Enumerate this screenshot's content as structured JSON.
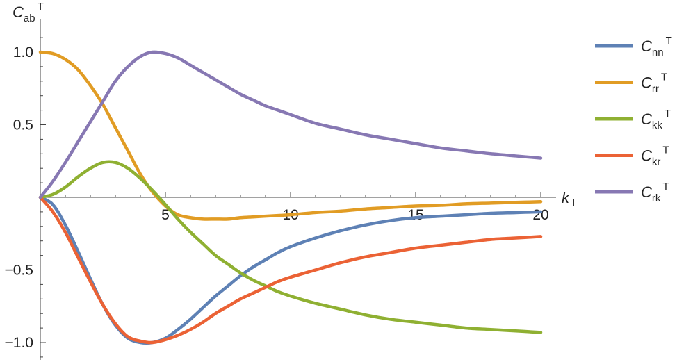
{
  "chart_data": {
    "type": "line",
    "ylabel": {
      "main": "C",
      "sub": "ab",
      "sup": "T"
    },
    "xlabel": {
      "main": "k",
      "sub": "⊥"
    },
    "xlim": [
      0,
      20
    ],
    "ylim": [
      -1.1,
      1.1
    ],
    "xticks": [
      5,
      10,
      15,
      20
    ],
    "xtick_labels": [
      "5",
      "10",
      "15",
      "20"
    ],
    "yticks": [
      -1.0,
      -0.5,
      0.5,
      1.0
    ],
    "ytick_labels": [
      "−1.0",
      "−0.5",
      "0.5",
      "1.0"
    ],
    "grid": false,
    "legend_position": "right",
    "series": [
      {
        "name": "C_nn^T",
        "label_main": "C",
        "label_sub": "nn",
        "label_sup": "T",
        "color": "#5E81B5",
        "x": [
          0,
          0.5,
          1,
          1.5,
          2,
          2.5,
          3,
          3.5,
          4,
          4.47,
          5,
          5.5,
          6,
          6.5,
          7,
          7.5,
          8,
          8.5,
          9,
          9.5,
          10,
          11,
          12,
          13,
          14,
          15,
          16,
          17,
          18,
          19,
          20
        ],
        "y": [
          0,
          -0.05,
          -0.19,
          -0.37,
          -0.56,
          -0.74,
          -0.88,
          -0.97,
          -1.0,
          -1.0,
          -0.97,
          -0.91,
          -0.84,
          -0.76,
          -0.68,
          -0.61,
          -0.54,
          -0.48,
          -0.43,
          -0.38,
          -0.34,
          -0.28,
          -0.23,
          -0.19,
          -0.16,
          -0.14,
          -0.13,
          -0.12,
          -0.11,
          -0.105,
          -0.1
        ]
      },
      {
        "name": "C_rr^T",
        "label_main": "C",
        "label_sub": "rr",
        "label_sup": "T",
        "color": "#E19C24",
        "x": [
          0,
          0.5,
          1,
          1.5,
          2,
          2.5,
          3,
          3.5,
          4,
          4.47,
          5,
          5.5,
          6,
          6.5,
          7,
          7.5,
          8,
          8.5,
          9,
          9.5,
          10,
          11,
          12,
          13,
          14,
          15,
          16,
          17,
          18,
          19,
          20
        ],
        "y": [
          1.0,
          0.99,
          0.95,
          0.88,
          0.77,
          0.64,
          0.48,
          0.32,
          0.16,
          0.04,
          -0.06,
          -0.12,
          -0.14,
          -0.15,
          -0.15,
          -0.15,
          -0.14,
          -0.135,
          -0.13,
          -0.125,
          -0.12,
          -0.105,
          -0.095,
          -0.08,
          -0.07,
          -0.06,
          -0.055,
          -0.045,
          -0.04,
          -0.035,
          -0.03
        ]
      },
      {
        "name": "C_kk^T",
        "label_main": "C",
        "label_sub": "kk",
        "label_sup": "T",
        "color": "#8FB032",
        "x": [
          0,
          0.5,
          1,
          1.5,
          2,
          2.5,
          3,
          3.5,
          4,
          4.47,
          5,
          5.5,
          6,
          6.5,
          7,
          7.5,
          8,
          8.5,
          9,
          9.5,
          10,
          11,
          12,
          13,
          14,
          15,
          16,
          17,
          18,
          19,
          20
        ],
        "y": [
          0,
          0.02,
          0.07,
          0.14,
          0.2,
          0.24,
          0.24,
          0.2,
          0.13,
          0.05,
          -0.05,
          -0.15,
          -0.24,
          -0.32,
          -0.4,
          -0.46,
          -0.52,
          -0.57,
          -0.61,
          -0.65,
          -0.68,
          -0.73,
          -0.77,
          -0.81,
          -0.84,
          -0.86,
          -0.88,
          -0.9,
          -0.91,
          -0.92,
          -0.93
        ]
      },
      {
        "name": "C_kr^T",
        "label_main": "C",
        "label_sub": "kr",
        "label_sup": "T",
        "color": "#EB6235",
        "x": [
          0,
          0.5,
          1,
          1.5,
          2,
          2.5,
          3,
          3.5,
          4,
          4.47,
          5,
          5.5,
          6,
          6.5,
          7,
          7.5,
          8,
          8.5,
          9,
          9.5,
          10,
          11,
          12,
          13,
          14,
          15,
          16,
          17,
          18,
          19,
          20
        ],
        "y": [
          0,
          -0.1,
          -0.24,
          -0.41,
          -0.58,
          -0.74,
          -0.87,
          -0.96,
          -0.99,
          -1.0,
          -0.98,
          -0.95,
          -0.91,
          -0.86,
          -0.8,
          -0.75,
          -0.7,
          -0.66,
          -0.62,
          -0.58,
          -0.55,
          -0.5,
          -0.45,
          -0.41,
          -0.38,
          -0.35,
          -0.33,
          -0.31,
          -0.29,
          -0.28,
          -0.27
        ]
      },
      {
        "name": "C_rk^T",
        "label_main": "C",
        "label_sub": "rk",
        "label_sup": "T",
        "color": "#8778B3",
        "x": [
          0,
          0.5,
          1,
          1.5,
          2,
          2.5,
          3,
          3.5,
          4,
          4.47,
          5,
          5.5,
          6,
          6.5,
          7,
          7.5,
          8,
          8.5,
          9,
          9.5,
          10,
          11,
          12,
          13,
          14,
          15,
          16,
          17,
          18,
          19,
          20
        ],
        "y": [
          0,
          0.11,
          0.24,
          0.38,
          0.52,
          0.66,
          0.8,
          0.9,
          0.97,
          1.0,
          0.99,
          0.96,
          0.91,
          0.86,
          0.81,
          0.76,
          0.71,
          0.67,
          0.63,
          0.6,
          0.57,
          0.51,
          0.47,
          0.43,
          0.4,
          0.37,
          0.34,
          0.32,
          0.3,
          0.285,
          0.27
        ]
      }
    ]
  }
}
